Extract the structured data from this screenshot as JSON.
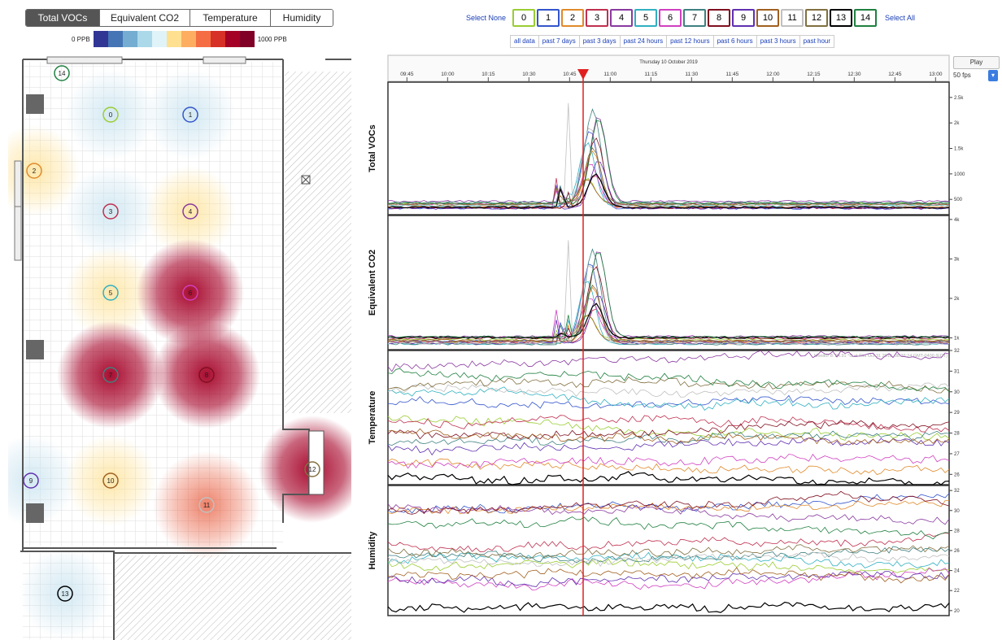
{
  "tabs": [
    {
      "label": "Total VOCs",
      "active": true
    },
    {
      "label": "Equivalent CO2",
      "active": false
    },
    {
      "label": "Temperature",
      "active": false
    },
    {
      "label": "Humidity",
      "active": false
    }
  ],
  "legend": {
    "min_label": "0 PPB",
    "max_label": "1000 PPB",
    "colors": [
      "#313695",
      "#4575b4",
      "#74add1",
      "#abd9e9",
      "#e0f3f8",
      "#fee090",
      "#fdae61",
      "#f46d43",
      "#d73027",
      "#a50026",
      "#800026"
    ]
  },
  "sensor_select": {
    "select_none": "Select None",
    "select_all": "Select All",
    "sensors": [
      {
        "label": "0",
        "color": "#9acd32"
      },
      {
        "label": "1",
        "color": "#3355cc"
      },
      {
        "label": "2",
        "color": "#e08a2a"
      },
      {
        "label": "3",
        "color": "#c0304f"
      },
      {
        "label": "4",
        "color": "#8a3aa0"
      },
      {
        "label": "5",
        "color": "#30b0c0"
      },
      {
        "label": "6",
        "color": "#d040c0"
      },
      {
        "label": "7",
        "color": "#408080"
      },
      {
        "label": "8",
        "color": "#801020"
      },
      {
        "label": "9",
        "color": "#6030b0"
      },
      {
        "label": "10",
        "color": "#a06020"
      },
      {
        "label": "11",
        "color": "#c0c0c0"
      },
      {
        "label": "12",
        "color": "#807040"
      },
      {
        "label": "13",
        "color": "#000000"
      },
      {
        "label": "14",
        "color": "#208040"
      }
    ]
  },
  "time_ranges": [
    "all data",
    "past 7 days",
    "past 3 days",
    "past 24 hours",
    "past 12 hours",
    "past 6 hours",
    "past 3 hours",
    "past hour"
  ],
  "floor": {
    "sensors": [
      {
        "label": "14",
        "color": "#208040"
      },
      {
        "label": "0",
        "color": "#9acd32"
      },
      {
        "label": "1",
        "color": "#3355cc"
      },
      {
        "label": "2",
        "color": "#e08a2a"
      },
      {
        "label": "3",
        "color": "#c0304f"
      },
      {
        "label": "4",
        "color": "#8a3aa0"
      },
      {
        "label": "5",
        "color": "#30b0c0"
      },
      {
        "label": "6",
        "color": "#d040c0"
      },
      {
        "label": "7",
        "color": "#408080"
      },
      {
        "label": "8",
        "color": "#801020"
      },
      {
        "label": "9",
        "color": "#6030b0"
      },
      {
        "label": "10",
        "color": "#a06020"
      },
      {
        "label": "11",
        "color": "#c0c0c0"
      },
      {
        "label": "12",
        "color": "#807040"
      },
      {
        "label": "13",
        "color": "#000000"
      }
    ],
    "heat": [
      {
        "sensor": "0",
        "level": 0.2
      },
      {
        "sensor": "1",
        "level": 0.2
      },
      {
        "sensor": "2",
        "level": 0.45
      },
      {
        "sensor": "3",
        "level": 0.2
      },
      {
        "sensor": "4",
        "level": 0.45
      },
      {
        "sensor": "5",
        "level": 0.45
      },
      {
        "sensor": "6",
        "level": 1.0
      },
      {
        "sensor": "7",
        "level": 1.0
      },
      {
        "sensor": "8",
        "level": 1.0
      },
      {
        "sensor": "9",
        "level": 0.2
      },
      {
        "sensor": "10",
        "level": 0.5
      },
      {
        "sensor": "11",
        "level": 0.8
      },
      {
        "sensor": "12",
        "level": 1.0
      },
      {
        "sensor": "13",
        "level": 0.2
      }
    ]
  },
  "timeline": {
    "date": "Thursday 10 October 2019",
    "ticks": [
      "09:45",
      "10:00",
      "10:15",
      "10:30",
      "10:45",
      "11:00",
      "11:15",
      "11:30",
      "11:45",
      "12:00",
      "12:15",
      "12:30",
      "12:45",
      "13:00"
    ],
    "cursor_time": "10:50",
    "play_label": "Play",
    "fps_label": "50 fps"
  },
  "chart_data": [
    {
      "type": "line",
      "title": "Total VOCs",
      "y_ticks": [
        "500",
        "1000",
        "1.5k",
        "2k",
        "2.5k"
      ],
      "ylim": [
        200,
        2800
      ]
    },
    {
      "type": "line",
      "title": "Equivalent CO2",
      "y_ticks": [
        "1k",
        "2k",
        "3k",
        "4k"
      ],
      "ylim": [
        700,
        4100
      ]
    },
    {
      "type": "line",
      "title": "Temperature",
      "y_ticks": [
        "26",
        "27",
        "28",
        "29",
        "30",
        "31",
        "32"
      ],
      "ylim": [
        25.5,
        32
      ],
      "annotation": "Monitor 8: 24.91 °C at Thu Oct 31 2019, 08:36:24 GMT-0400 (EDT)"
    },
    {
      "type": "line",
      "title": "Humidity",
      "y_ticks": [
        "20",
        "22",
        "24",
        "26",
        "28",
        "30",
        "32"
      ],
      "ylim": [
        19.5,
        32.5
      ]
    }
  ]
}
